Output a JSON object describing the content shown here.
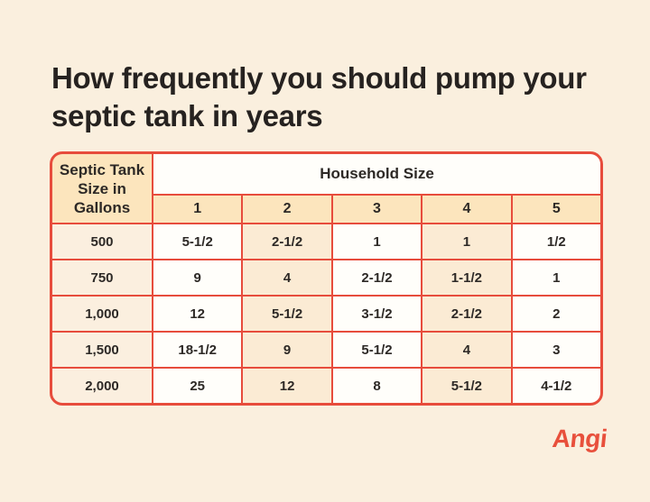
{
  "page": {
    "title": "How frequently you should pump your septic tank in years",
    "brand": "Angi"
  },
  "colors": {
    "background": "#FAEFDE",
    "table_border": "#E74C3C",
    "header_cell": "#FCE5BD",
    "row_label_cell": "#FBEFDF",
    "stripe_cell": "#FBEBD4",
    "plain_cell": "#FFFEFA",
    "text": "#2D2926",
    "brand_red": "#E8503C"
  },
  "table": {
    "corner_header": "Septic Tank\nSize in\nGallons",
    "group_header": "Household Size",
    "column_headers": [
      "1",
      "2",
      "3",
      "4",
      "5"
    ],
    "rows": [
      {
        "gallons": "500",
        "values": [
          "5-1/2",
          "2-1/2",
          "1",
          "1",
          "1/2"
        ]
      },
      {
        "gallons": "750",
        "values": [
          "9",
          "4",
          "2-1/2",
          "1-1/2",
          "1"
        ]
      },
      {
        "gallons": "1,000",
        "values": [
          "12",
          "5-1/2",
          "3-1/2",
          "2-1/2",
          "2"
        ]
      },
      {
        "gallons": "1,500",
        "values": [
          "18-1/2",
          "9",
          "5-1/2",
          "4",
          "3"
        ]
      },
      {
        "gallons": "2,000",
        "values": [
          "25",
          "12",
          "8",
          "5-1/2",
          "4-1/2"
        ]
      }
    ]
  },
  "chart_data": {
    "type": "table",
    "title": "How frequently you should pump your septic tank in years",
    "row_axis_label": "Septic Tank Size in Gallons",
    "column_group_label": "Household Size",
    "columns": [
      "1",
      "2",
      "3",
      "4",
      "5"
    ],
    "row_categories": [
      "500",
      "750",
      "1,000",
      "1,500",
      "2,000"
    ],
    "values_years": [
      [
        5.5,
        2.5,
        1,
        1,
        0.5
      ],
      [
        9,
        4,
        2.5,
        1.5,
        1
      ],
      [
        12,
        5.5,
        3.5,
        2.5,
        2
      ],
      [
        18.5,
        9,
        5.5,
        4,
        3
      ],
      [
        25,
        12,
        8,
        5.5,
        4.5
      ]
    ],
    "units": "years",
    "source_brand": "Angi"
  }
}
